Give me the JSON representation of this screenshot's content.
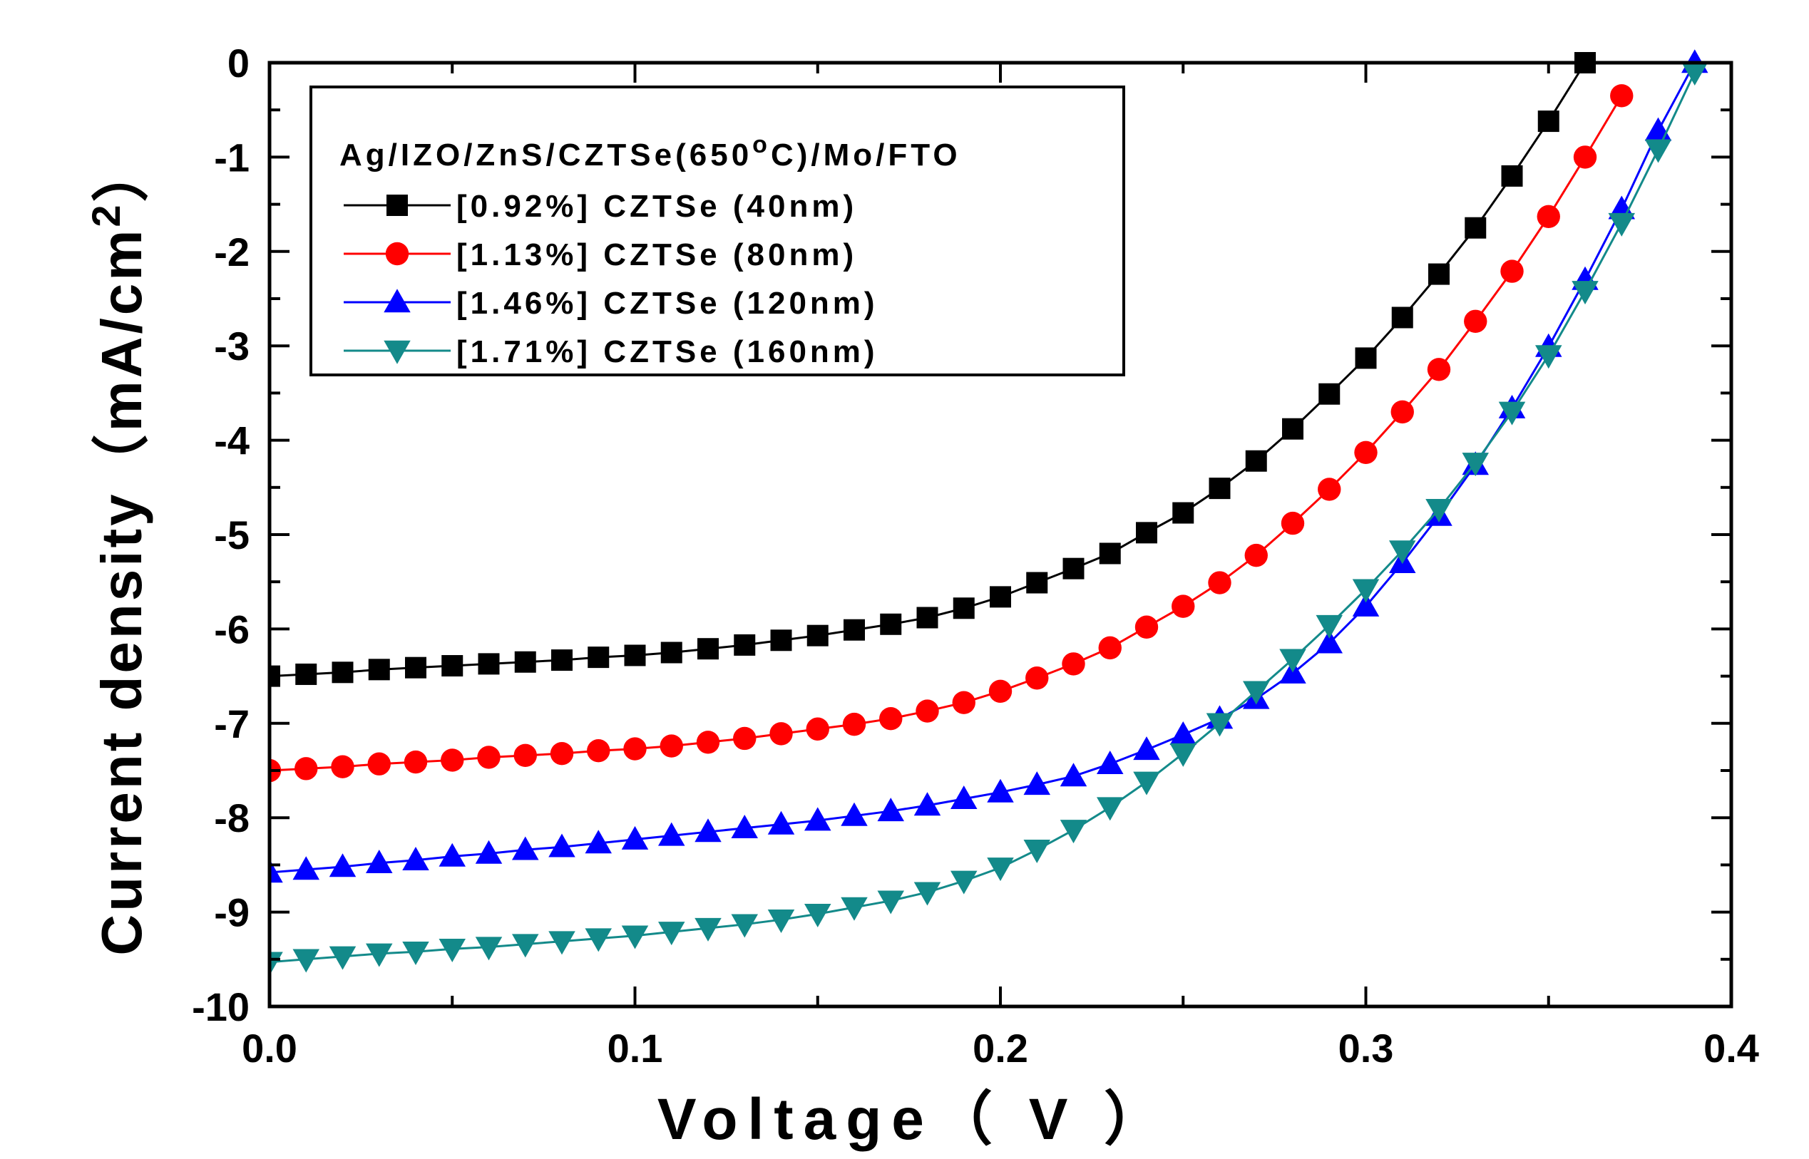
{
  "chart_data": {
    "type": "line",
    "title": "",
    "xlabel": "Voltage（ V ）",
    "ylabel_main": "Current density（mA/cm",
    "ylabel_sup": "2",
    "ylabel_close": "）",
    "xlim": [
      0.0,
      0.4
    ],
    "ylim": [
      -10,
      0
    ],
    "xticks": [
      "0.0",
      "0.1",
      "0.2",
      "0.3",
      "0.4"
    ],
    "yticks": [
      "0",
      "-1",
      "-2",
      "-3",
      "-4",
      "-5",
      "-6",
      "-7",
      "-8",
      "-9",
      "-10"
    ],
    "legend": {
      "title_main": "Ag/IZO/ZnS/CZTSe(650",
      "title_sup": "o",
      "title_end": "C)/Mo/FTO",
      "position": "top-left"
    },
    "series": [
      {
        "name": "[0.92%] CZTSe  (40nm)",
        "color": "#000000",
        "marker": "square",
        "x": [
          0.0,
          0.01,
          0.02,
          0.03,
          0.04,
          0.05,
          0.06,
          0.07,
          0.08,
          0.09,
          0.1,
          0.11,
          0.12,
          0.13,
          0.14,
          0.15,
          0.16,
          0.17,
          0.18,
          0.19,
          0.2,
          0.21,
          0.22,
          0.23,
          0.24,
          0.25,
          0.26,
          0.27,
          0.28,
          0.29,
          0.3,
          0.31,
          0.32,
          0.33,
          0.34,
          0.35,
          0.36
        ],
        "y": [
          -6.5,
          -6.48,
          -6.46,
          -6.43,
          -6.41,
          -6.39,
          -6.37,
          -6.35,
          -6.33,
          -6.3,
          -6.28,
          -6.25,
          -6.21,
          -6.17,
          -6.12,
          -6.07,
          -6.01,
          -5.95,
          -5.88,
          -5.78,
          -5.66,
          -5.51,
          -5.36,
          -5.2,
          -4.98,
          -4.77,
          -4.51,
          -4.22,
          -3.88,
          -3.51,
          -3.13,
          -2.7,
          -2.24,
          -1.75,
          -1.2,
          -0.62,
          0.0
        ]
      },
      {
        "name": "[1.13%] CZTSe  (80nm)",
        "color": "#ff0000",
        "marker": "circle",
        "x": [
          0.0,
          0.01,
          0.02,
          0.03,
          0.04,
          0.05,
          0.06,
          0.07,
          0.08,
          0.09,
          0.1,
          0.11,
          0.12,
          0.13,
          0.14,
          0.15,
          0.16,
          0.17,
          0.18,
          0.19,
          0.2,
          0.21,
          0.22,
          0.23,
          0.24,
          0.25,
          0.26,
          0.27,
          0.28,
          0.29,
          0.3,
          0.31,
          0.32,
          0.33,
          0.34,
          0.35,
          0.36,
          0.37
        ],
        "y": [
          -7.5,
          -7.48,
          -7.46,
          -7.43,
          -7.41,
          -7.39,
          -7.36,
          -7.34,
          -7.32,
          -7.29,
          -7.27,
          -7.24,
          -7.2,
          -7.16,
          -7.11,
          -7.06,
          -7.01,
          -6.95,
          -6.87,
          -6.78,
          -6.66,
          -6.52,
          -6.37,
          -6.2,
          -5.98,
          -5.76,
          -5.51,
          -5.22,
          -4.88,
          -4.52,
          -4.13,
          -3.7,
          -3.25,
          -2.74,
          -2.21,
          -1.63,
          -1.0,
          -0.35
        ]
      },
      {
        "name": "[1.46%] CZTSe (120nm)",
        "color": "#0000ff",
        "marker": "triangle-up",
        "x": [
          0.0,
          0.01,
          0.02,
          0.03,
          0.04,
          0.05,
          0.06,
          0.07,
          0.08,
          0.09,
          0.1,
          0.11,
          0.12,
          0.13,
          0.14,
          0.15,
          0.16,
          0.17,
          0.18,
          0.19,
          0.2,
          0.21,
          0.22,
          0.23,
          0.24,
          0.25,
          0.26,
          0.27,
          0.28,
          0.29,
          0.3,
          0.31,
          0.32,
          0.33,
          0.34,
          0.35,
          0.36,
          0.37,
          0.38,
          0.39
        ],
        "y": [
          -8.58,
          -8.55,
          -8.52,
          -8.48,
          -8.45,
          -8.41,
          -8.38,
          -8.34,
          -8.31,
          -8.27,
          -8.23,
          -8.19,
          -8.15,
          -8.11,
          -8.07,
          -8.03,
          -7.98,
          -7.93,
          -7.87,
          -7.8,
          -7.73,
          -7.65,
          -7.56,
          -7.43,
          -7.28,
          -7.12,
          -6.95,
          -6.74,
          -6.47,
          -6.15,
          -5.76,
          -5.3,
          -4.8,
          -4.26,
          -3.66,
          -3.01,
          -2.3,
          -1.55,
          -0.72,
          0.0
        ]
      },
      {
        "name": "[1.71%] CZTSe (160nm)",
        "color": "#138a8a",
        "marker": "triangle-down",
        "x": [
          0.0,
          0.01,
          0.02,
          0.03,
          0.04,
          0.05,
          0.06,
          0.07,
          0.08,
          0.09,
          0.1,
          0.11,
          0.12,
          0.13,
          0.14,
          0.15,
          0.16,
          0.17,
          0.18,
          0.19,
          0.2,
          0.21,
          0.22,
          0.23,
          0.24,
          0.25,
          0.26,
          0.27,
          0.28,
          0.29,
          0.3,
          0.31,
          0.32,
          0.33,
          0.34,
          0.35,
          0.36,
          0.37,
          0.38,
          0.39
        ],
        "y": [
          -9.53,
          -9.5,
          -9.47,
          -9.44,
          -9.42,
          -9.39,
          -9.37,
          -9.34,
          -9.31,
          -9.28,
          -9.25,
          -9.21,
          -9.17,
          -9.13,
          -9.08,
          -9.02,
          -8.95,
          -8.88,
          -8.79,
          -8.67,
          -8.53,
          -8.34,
          -8.13,
          -7.89,
          -7.62,
          -7.32,
          -7.0,
          -6.66,
          -6.32,
          -5.96,
          -5.58,
          -5.17,
          -4.73,
          -4.24,
          -3.7,
          -3.1,
          -2.42,
          -1.7,
          -0.92,
          -0.1
        ]
      }
    ]
  }
}
